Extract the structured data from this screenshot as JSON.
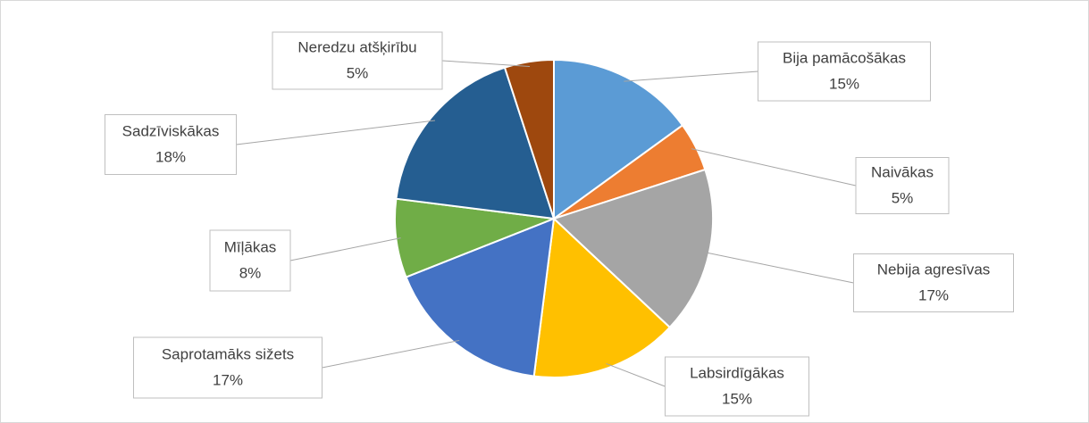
{
  "chart_data": {
    "type": "pie",
    "categories": [
      "Bija pamācošākas",
      "Naivākas",
      "Nebija agresīvas",
      "Labsirdīgākas",
      "Saprotamāks sižets",
      "Mīļākas",
      "Sadzīviskākas",
      "Neredzu atšķirību"
    ],
    "values": [
      15,
      5,
      17,
      15,
      17,
      8,
      18,
      5
    ],
    "value_labels": [
      "15%",
      "5%",
      "17%",
      "15%",
      "17%",
      "8%",
      "18%",
      "5%"
    ],
    "colors": [
      "#5b9bd5",
      "#ed7d31",
      "#a5a5a5",
      "#ffc000",
      "#4472c4",
      "#70ad47",
      "#255e91",
      "#9e480e"
    ]
  }
}
